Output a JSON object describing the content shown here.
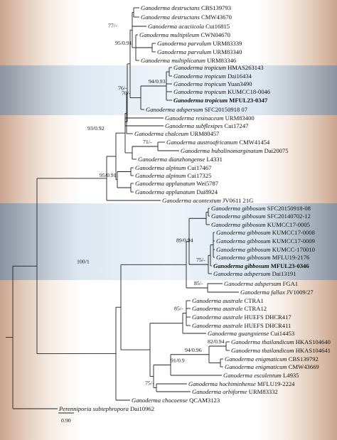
{
  "scale_bar": "0.90",
  "tips": [
    {
      "sp": "Ganoderma destructans",
      "st": "CBS139793"
    },
    {
      "sp": "Ganoderma destructans",
      "st": "CMW43670"
    },
    {
      "sp": "Ganoderma acaciicola",
      "st": "Cui16815"
    },
    {
      "sp": "Ganoderma multipileum",
      "st": "CWN04670"
    },
    {
      "sp": "Ganoderma parvulum",
      "st": "URM83339"
    },
    {
      "sp": "Ganoderma parvulum",
      "st": "URM83340"
    },
    {
      "sp": "Ganoderma multiplicatum",
      "st": "URM83346"
    },
    {
      "sp": "Ganoderma tropicum",
      "st": "HMAS263143"
    },
    {
      "sp": "Ganoderma tropicum",
      "st": "Dai16434"
    },
    {
      "sp": "Ganoderma tropicum",
      "st": "Yuan3490"
    },
    {
      "sp": "Ganoderma tropicum",
      "st": "KUMCC18-0046"
    },
    {
      "sp": "Ganoderma tropicum",
      "st": "MFUL23-0347",
      "bold": true
    },
    {
      "sp": "Ganoderma adspersum",
      "st": "SFC20150918 07"
    },
    {
      "sp": "Ganoderma resinaceum",
      "st": "URM83400"
    },
    {
      "sp": "Ganoderma subflexipes",
      "st": "Cui17247"
    },
    {
      "sp": "Ganoderma chalceum",
      "st": "URM80457"
    },
    {
      "sp": "Ganoderma austroafricanum",
      "st": "CMW41454"
    },
    {
      "sp": "Ganoderma bubalinomarginatum",
      "st": "Dai20075"
    },
    {
      "sp": "Ganoderma dianzhongense",
      "st": "L4331"
    },
    {
      "sp": "Ganoderma alpinum",
      "st": "Cui17467"
    },
    {
      "sp": "Ganoderma alpinum",
      "st": "Cui17325"
    },
    {
      "sp": "Ganoderma applanatum",
      "st": "Wei5787"
    },
    {
      "sp": "Ganoderma applanatum",
      "st": "Dai8924"
    },
    {
      "sp": "Ganoderma acontextum",
      "st": "JV0611 21G"
    },
    {
      "sp": "Ganoderma gibbosum",
      "st": "SFC20150918-08"
    },
    {
      "sp": "Ganoderma gibbosum",
      "st": "SFC20140702-12"
    },
    {
      "sp": "Ganoderma gibbosum",
      "st": "KUMCC17-0005"
    },
    {
      "sp": "Ganoderma gibbosum",
      "st": "KUMCC17-0008"
    },
    {
      "sp": "Ganoderma gibbosum",
      "st": "KUMCC17-0009"
    },
    {
      "sp": "Ganoderma gibbosum",
      "st": "KUMCC-170010"
    },
    {
      "sp": "Ganoderma gibbosum",
      "st": "MFLU19-2176"
    },
    {
      "sp": "Ganoderma gibbosum",
      "st": "MFUL23-0346",
      "bold": true
    },
    {
      "sp": "Ganoderma adspersum",
      "st": "Dai13191"
    },
    {
      "sp": "Ganoderma adspersum",
      "st": "FGA1"
    },
    {
      "sp": "Ganoderma fallax",
      "st": "JV1009/27"
    },
    {
      "sp": "Ganoderma australe",
      "st": "CTRA1"
    },
    {
      "sp": "Ganoderma australe",
      "st": "CTRA12"
    },
    {
      "sp": "Ganoderma australe",
      "st": "HUEFS DHCR417"
    },
    {
      "sp": "Ganoderma australe",
      "st": "HUEFS DHCR411"
    },
    {
      "sp": "Ganoderma guangxiense",
      "st": "Cui14453"
    },
    {
      "sp": "Ganoderma thailandicum",
      "st": "HKAS104640"
    },
    {
      "sp": "Ganoderma thailandicum",
      "st": "HKAS104641"
    },
    {
      "sp": "Ganoderma enigmaticum",
      "st": "CBS139792"
    },
    {
      "sp": "Ganoderma enigmaticum",
      "st": "CMW43669"
    },
    {
      "sp": "Ganoderma esculentum",
      "st": "L4935"
    },
    {
      "sp": "Ganoderma hochiminhense",
      "st": "MFLU19-2224"
    },
    {
      "sp": "Ganoderma orbiforme",
      "st": "URM83332"
    },
    {
      "sp": "Ganoderma chocoense",
      "st": "QCAM3123"
    },
    {
      "sp": "Perenniporia subtephropora",
      "st": "Dai10962"
    }
  ],
  "supports": [
    "77/-",
    "95/0.91",
    "94/0.93",
    "70/-",
    "76/-",
    "71/-",
    "93/0.92",
    "95/0.91",
    "89/0.94",
    "75/-",
    "100/1",
    "85/-",
    "85/-",
    "82/0.94",
    "94/0.96",
    "91/0.9",
    "75/-"
  ]
}
